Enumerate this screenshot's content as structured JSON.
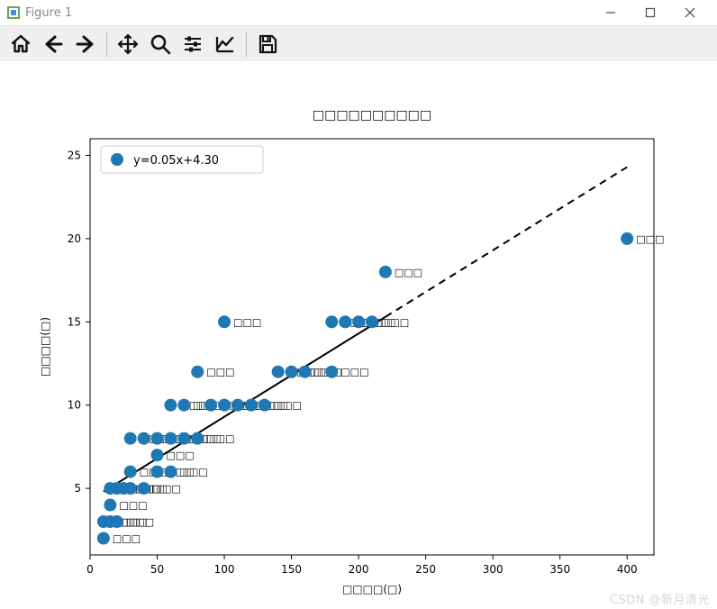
{
  "window": {
    "title": "Figure 1",
    "minimize_tooltip": "Minimize",
    "maximize_tooltip": "Maximize",
    "close_tooltip": "Close"
  },
  "toolbar": {
    "items": [
      "home",
      "back",
      "forward",
      "|",
      "pan",
      "zoom",
      "|",
      "subplots",
      "edit",
      "|",
      "save"
    ]
  },
  "watermark": "CSDN @新月清光",
  "chart": {
    "type": "scatter+line",
    "title": "□□□□□□□□□□",
    "title_fontsize": 14,
    "xlabel": "□□□□(□)",
    "ylabel": "□□□□(□)",
    "label_fontsize": 12,
    "tick_fontsize": 12,
    "background_color": "#ffffff",
    "axis_color": "#000000",
    "legend": {
      "position": "upper-left",
      "border_color": "#cccccc",
      "bg_color": "#ffffff",
      "items": [
        {
          "marker": "circle",
          "color": "#1f77b4",
          "label": "y=0.05x+4.30"
        }
      ]
    },
    "xlim": [
      0,
      420
    ],
    "ylim": [
      1,
      26
    ],
    "xticks": [
      0,
      50,
      100,
      150,
      200,
      250,
      300,
      350,
      400
    ],
    "yticks": [
      5,
      10,
      15,
      20,
      25
    ],
    "marker_color": "#1f77b4",
    "marker_radius": 7,
    "point_label": "□□□",
    "point_label_fontsize": 11,
    "point_label_color": "#000000",
    "points": [
      {
        "x": 10,
        "y": 2
      },
      {
        "x": 10,
        "y": 3
      },
      {
        "x": 15,
        "y": 3
      },
      {
        "x": 20,
        "y": 3
      },
      {
        "x": 15,
        "y": 4
      },
      {
        "x": 15,
        "y": 5
      },
      {
        "x": 20,
        "y": 5
      },
      {
        "x": 25,
        "y": 5
      },
      {
        "x": 30,
        "y": 5
      },
      {
        "x": 40,
        "y": 5
      },
      {
        "x": 30,
        "y": 6
      },
      {
        "x": 50,
        "y": 6
      },
      {
        "x": 60,
        "y": 6
      },
      {
        "x": 50,
        "y": 7
      },
      {
        "x": 30,
        "y": 8
      },
      {
        "x": 40,
        "y": 8
      },
      {
        "x": 50,
        "y": 8
      },
      {
        "x": 60,
        "y": 8
      },
      {
        "x": 70,
        "y": 8
      },
      {
        "x": 80,
        "y": 8
      },
      {
        "x": 60,
        "y": 10
      },
      {
        "x": 70,
        "y": 10
      },
      {
        "x": 90,
        "y": 10
      },
      {
        "x": 100,
        "y": 10
      },
      {
        "x": 110,
        "y": 10
      },
      {
        "x": 120,
        "y": 10
      },
      {
        "x": 130,
        "y": 10
      },
      {
        "x": 80,
        "y": 12
      },
      {
        "x": 140,
        "y": 12
      },
      {
        "x": 150,
        "y": 12
      },
      {
        "x": 160,
        "y": 12
      },
      {
        "x": 180,
        "y": 12
      },
      {
        "x": 100,
        "y": 15
      },
      {
        "x": 180,
        "y": 15
      },
      {
        "x": 190,
        "y": 15
      },
      {
        "x": 200,
        "y": 15
      },
      {
        "x": 210,
        "y": 15
      },
      {
        "x": 220,
        "y": 18
      },
      {
        "x": 400,
        "y": 20
      }
    ],
    "fit_line": {
      "slope": 0.05,
      "intercept": 4.3,
      "x0": 10,
      "x1": 400,
      "color": "#000000",
      "width": 2,
      "solid_until_x": 220,
      "dash_pattern": "8,6"
    }
  }
}
